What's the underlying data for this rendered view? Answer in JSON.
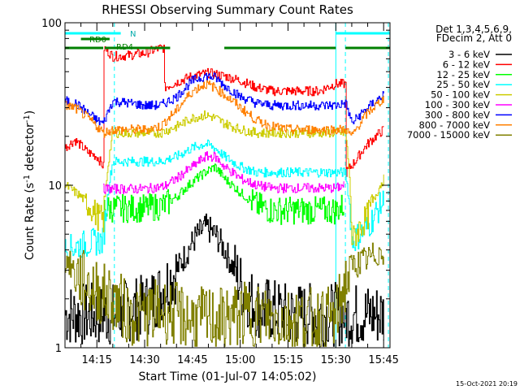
{
  "chart_data": {
    "type": "line",
    "title": "RHESSI Observing Summary Count Rates",
    "xlabel": "Start Time (01-Jul-07 14:05:02)",
    "ylabel": "Count Rate (s",
    "ylabel_sup": "-1",
    "ylabel_tail": " detector",
    "ylabel_end": ")",
    "footer": "15-Oct-2021 20:19",
    "x_ticks": [
      "14:15",
      "14:30",
      "14:45",
      "15:00",
      "15:15",
      "15:30",
      "15:45"
    ],
    "x_tick_minutes": [
      10,
      25,
      40,
      55,
      70,
      85,
      100
    ],
    "xlim_minutes": [
      0,
      102
    ],
    "y_scale": "log",
    "ylim": [
      1,
      100
    ],
    "y_ticks": [
      "1",
      "10",
      "100"
    ],
    "legend_header": [
      "Det 1,3,4,5,6,9,",
      "FDecim 2, Att 0"
    ],
    "series": [
      {
        "name": "3 - 6 keV",
        "color": "#000000",
        "x": [
          0,
          10,
          15,
          20,
          25,
          30,
          35,
          38,
          41,
          44,
          47,
          50,
          53,
          56,
          60,
          65,
          70,
          75,
          80,
          85,
          88,
          92,
          96,
          100
        ],
        "y": [
          1.6,
          1.6,
          1.6,
          1.7,
          1.8,
          2.2,
          3.0,
          3.8,
          4.8,
          5.5,
          5.0,
          4.0,
          3.0,
          2.2,
          1.8,
          1.7,
          1.6,
          1.6,
          1.6,
          1.6,
          1.6,
          1.6,
          1.6,
          1.6
        ]
      },
      {
        "name": "6 - 12 keV",
        "color": "#ff0000",
        "x": [
          0,
          3,
          7,
          10,
          12,
          12.2,
          15,
          20,
          25,
          30,
          31,
          31.2,
          35,
          40,
          45,
          50,
          55,
          60,
          65,
          70,
          75,
          80,
          82,
          85,
          88,
          88.2,
          91,
          95,
          100
        ],
        "y": [
          17,
          19,
          16,
          15,
          13,
          70,
          62,
          63,
          65,
          70,
          70,
          40,
          43,
          47,
          49,
          47,
          44,
          40,
          38,
          38,
          38,
          38,
          40,
          42,
          42,
          12,
          14,
          18,
          22
        ]
      },
      {
        "name": "12 - 25 keV",
        "color": "#00ff00",
        "x": [
          12,
          20,
          25,
          31,
          35,
          40,
          44,
          47,
          50,
          55,
          60,
          65,
          70,
          75,
          80,
          85,
          87.5
        ],
        "y": [
          7.2,
          7.2,
          7.2,
          7.5,
          8.5,
          10.5,
          12,
          13,
          11,
          9.0,
          7.5,
          7.0,
          7.0,
          7.0,
          7.0,
          7.0,
          7.5
        ]
      },
      {
        "name": "25 - 50 keV",
        "color": "#00ffff",
        "x": [
          0,
          5,
          10,
          12,
          15,
          20,
          25,
          30,
          35,
          40,
          44,
          47,
          50,
          55,
          60,
          65,
          70,
          75,
          80,
          85,
          88,
          90,
          95,
          100
        ],
        "y": [
          4.0,
          4.3,
          4.5,
          4.5,
          14,
          14,
          14,
          14,
          15,
          17,
          18,
          17,
          15,
          13,
          12,
          12,
          12,
          12,
          12,
          12,
          12,
          4.5,
          5.5,
          8.0
        ]
      },
      {
        "name": "50 - 100 keV",
        "color": "#cccc00",
        "x": [
          0,
          5,
          10,
          12,
          15,
          20,
          25,
          30,
          35,
          40,
          44,
          47,
          50,
          55,
          60,
          65,
          70,
          75,
          80,
          85,
          88,
          90,
          95,
          100
        ],
        "y": [
          10,
          8.5,
          6.5,
          6.0,
          21,
          21,
          21,
          21,
          23,
          26,
          27,
          26,
          24,
          22,
          21,
          21,
          21,
          21,
          21,
          21,
          21,
          4.5,
          6.5,
          11
        ]
      },
      {
        "name": "100 - 300 keV",
        "color": "#ff00ff",
        "x": [
          12,
          20,
          25,
          31,
          35,
          40,
          44,
          47,
          50,
          55,
          60,
          65,
          70,
          75,
          80,
          85,
          87.5
        ],
        "y": [
          9.5,
          9.5,
          9.5,
          9.8,
          11,
          13,
          15,
          15,
          13,
          11,
          10,
          9.6,
          9.6,
          9.6,
          9.6,
          9.6,
          10
        ]
      },
      {
        "name": "300 - 800 keV",
        "color": "#0000ff",
        "x": [
          0,
          3,
          7,
          10,
          12,
          15,
          20,
          25,
          30,
          35,
          40,
          44,
          47,
          50,
          55,
          60,
          65,
          70,
          75,
          80,
          85,
          88,
          90,
          95,
          100
        ],
        "y": [
          33,
          32,
          28,
          25,
          24,
          33,
          32,
          31,
          31,
          35,
          44,
          47,
          46,
          41,
          35,
          32,
          31,
          31,
          31,
          31,
          31,
          32,
          24,
          30,
          36
        ]
      },
      {
        "name": "800 - 7000 keV",
        "color": "#ff8000",
        "x": [
          0,
          3,
          7,
          10,
          12,
          15,
          20,
          25,
          30,
          35,
          40,
          44,
          47,
          50,
          55,
          60,
          65,
          70,
          75,
          80,
          85,
          88,
          90,
          95,
          100
        ],
        "y": [
          31,
          30,
          26,
          23,
          21,
          22,
          22,
          22,
          23,
          29,
          38,
          42,
          40,
          36,
          30,
          25,
          23,
          22,
          22,
          22,
          22,
          22,
          20,
          28,
          34
        ]
      },
      {
        "name": "7000 - 15000 keV",
        "color": "#808000",
        "x": [
          0,
          5,
          10,
          15,
          20,
          25,
          30,
          35,
          40,
          45,
          50,
          55,
          60,
          65,
          70,
          75,
          80,
          85,
          90,
          95,
          100
        ],
        "y": [
          3.5,
          2.6,
          2.2,
          2.0,
          1.6,
          1.6,
          1.7,
          1.6,
          1.5,
          1.5,
          1.5,
          1.6,
          1.6,
          1.5,
          1.5,
          1.5,
          1.5,
          1.5,
          3.2,
          3.5,
          4.0
        ]
      }
    ],
    "bars": [
      {
        "label": "N",
        "color": "#00ffff",
        "segments": [
          [
            0,
            17.5
          ],
          [
            85,
            102
          ]
        ]
      },
      {
        "label": "RD0",
        "color": "#008000",
        "segments": [
          [
            5,
            14
          ]
        ]
      },
      {
        "label": "RD4",
        "color": "#008000",
        "segments": [
          [
            0,
            12
          ],
          [
            12.5,
            33
          ],
          [
            50,
            85
          ],
          [
            88,
            102
          ]
        ]
      }
    ],
    "vlines": [
      {
        "x": 0,
        "color": "#00ffff",
        "style": "solid"
      },
      {
        "x": 15.5,
        "color": "#00ffff",
        "style": "dashed"
      },
      {
        "x": 85,
        "color": "#00ffff",
        "style": "solid"
      },
      {
        "x": 88,
        "color": "#00ffff",
        "style": "dashed"
      },
      {
        "x": 101.5,
        "color": "#00ffff",
        "style": "dashed"
      }
    ]
  }
}
